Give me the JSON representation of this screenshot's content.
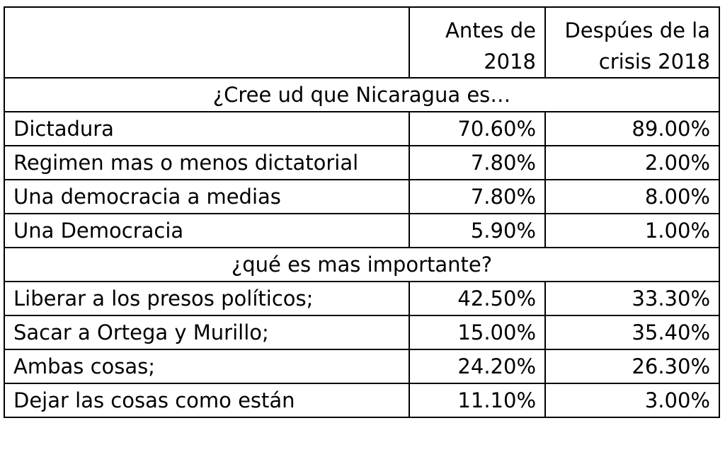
{
  "chart_data": {
    "type": "table",
    "columns": [
      "",
      "Antes de 2018",
      "Despúes de la crisis 2018"
    ],
    "sections": [
      {
        "heading": "¿Cree ud que Nicaragua es…",
        "rows": [
          {
            "label": "Dictadura",
            "values": [
              "70.60%",
              "89.00%"
            ]
          },
          {
            "label": "Regimen mas o menos dictatorial",
            "values": [
              "7.80%",
              "2.00%"
            ]
          },
          {
            "label": "Una democracia a medias",
            "values": [
              "7.80%",
              "8.00%"
            ]
          },
          {
            "label": "Una Democracia",
            "values": [
              "5.90%",
              "1.00%"
            ]
          }
        ]
      },
      {
        "heading": "¿qué es mas importante?",
        "rows": [
          {
            "label": "Liberar a los presos políticos;",
            "values": [
              "42.50%",
              "33.30%"
            ]
          },
          {
            "label": "Sacar a Ortega y Murillo;",
            "values": [
              "15.00%",
              "35.40%"
            ]
          },
          {
            "label": "Ambas cosas;",
            "values": [
              "24.20%",
              "26.30%"
            ]
          },
          {
            "label": "Dejar las cosas como están",
            "values": [
              "11.10%",
              "3.00%"
            ]
          }
        ]
      }
    ]
  }
}
